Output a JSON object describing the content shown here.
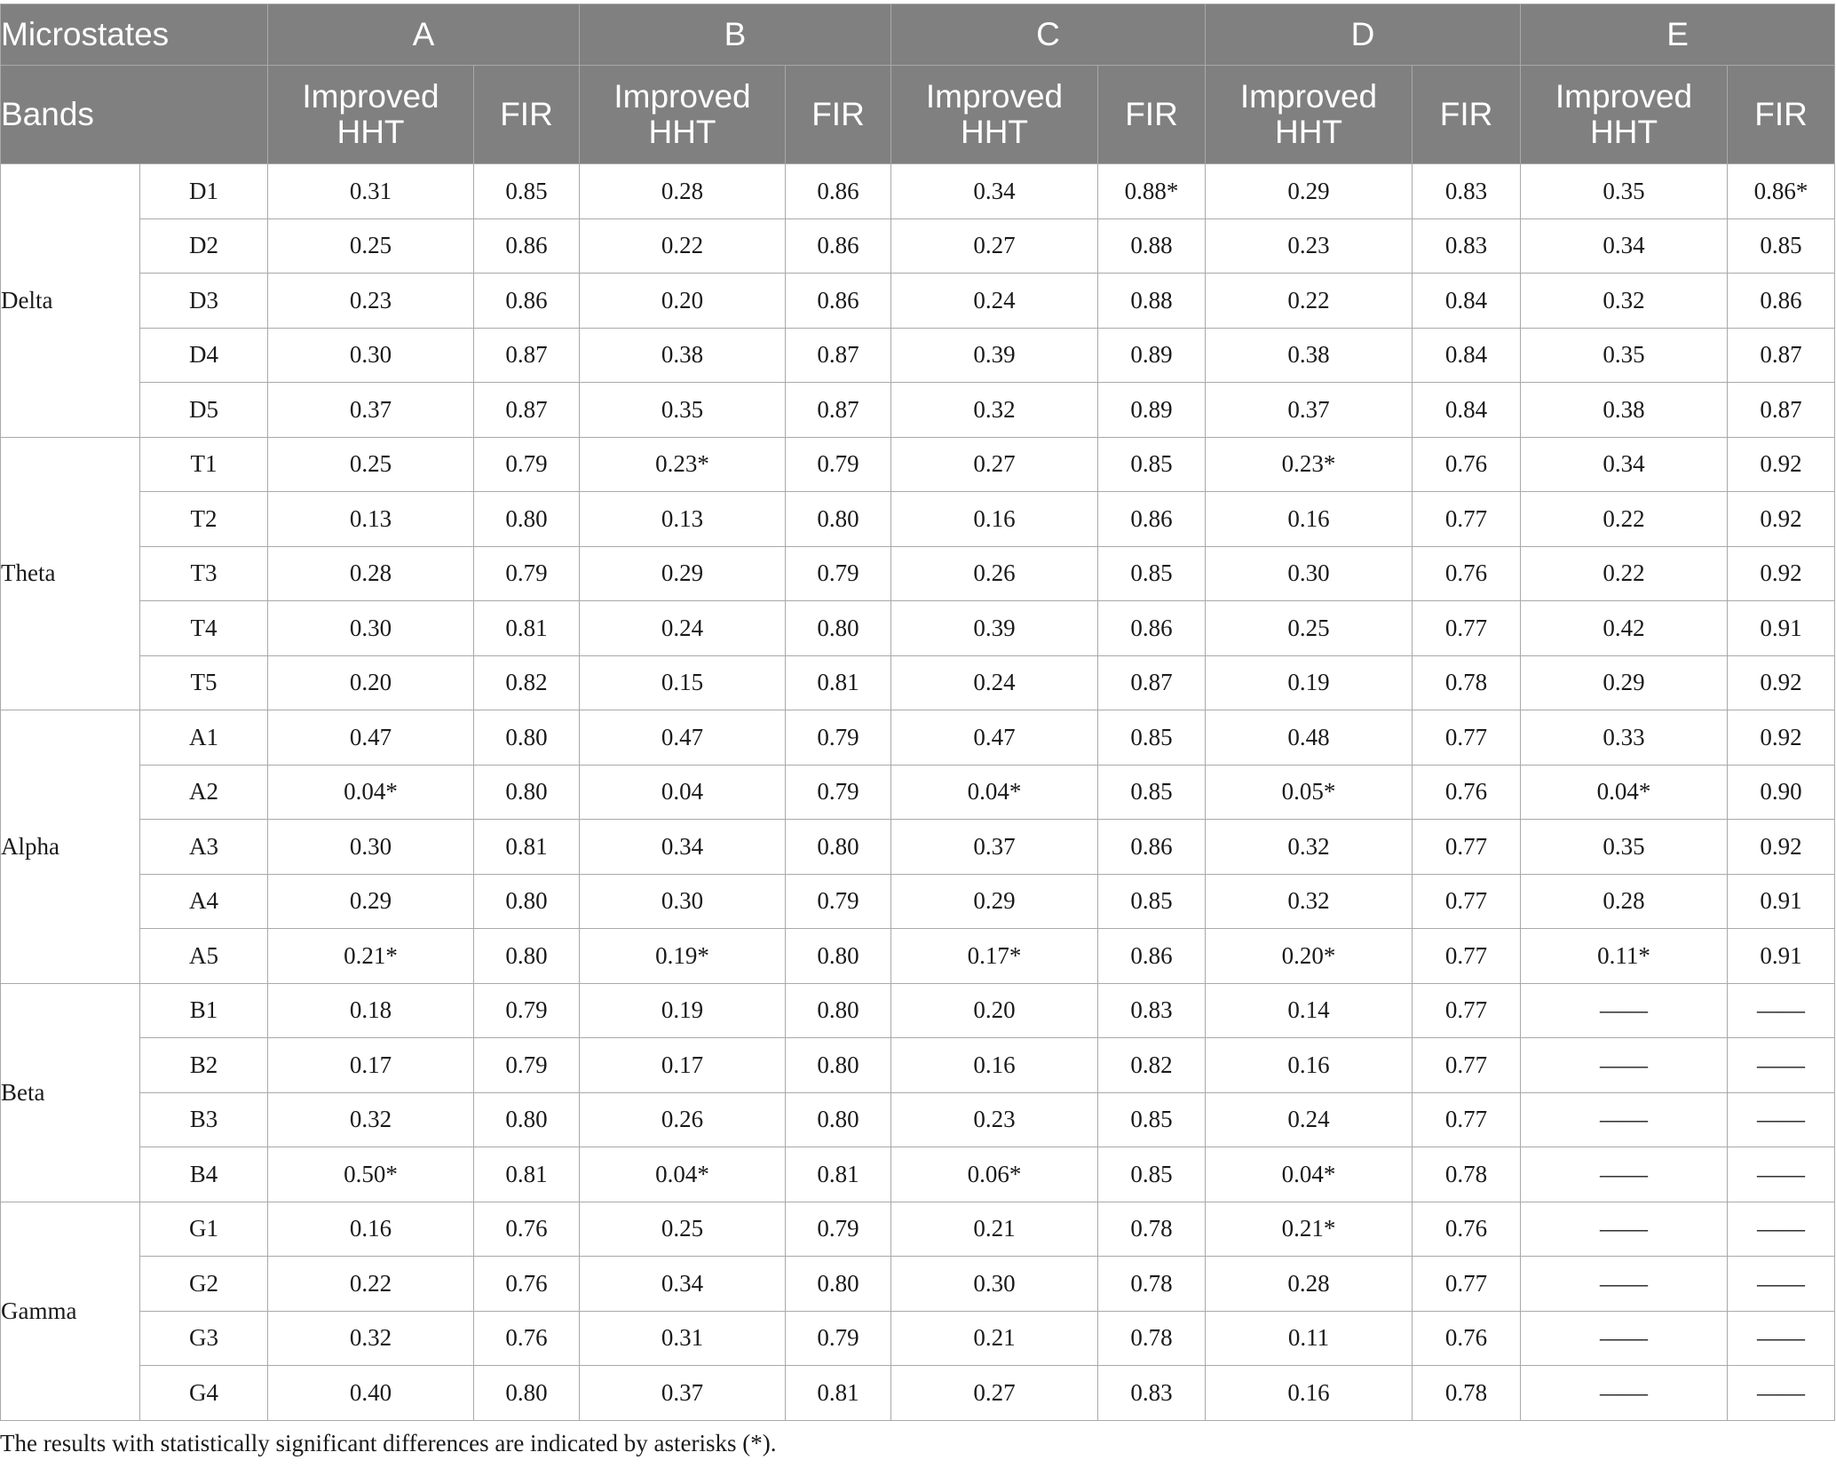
{
  "table": {
    "header_microstates": "Microstates",
    "header_bands": "Bands",
    "microstates": [
      "A",
      "B",
      "C",
      "D",
      "E"
    ],
    "method_hht": "Improved HHT",
    "method_fir": "FIR",
    "groups": [
      {
        "band": "Delta",
        "rows": [
          {
            "sub": "D1",
            "values": [
              "0.31",
              "0.85",
              "0.28",
              "0.86",
              "0.34",
              "0.88*",
              "0.29",
              "0.83",
              "0.35",
              "0.86*"
            ]
          },
          {
            "sub": "D2",
            "values": [
              "0.25",
              "0.86",
              "0.22",
              "0.86",
              "0.27",
              "0.88",
              "0.23",
              "0.83",
              "0.34",
              "0.85"
            ]
          },
          {
            "sub": "D3",
            "values": [
              "0.23",
              "0.86",
              "0.20",
              "0.86",
              "0.24",
              "0.88",
              "0.22",
              "0.84",
              "0.32",
              "0.86"
            ]
          },
          {
            "sub": "D4",
            "values": [
              "0.30",
              "0.87",
              "0.38",
              "0.87",
              "0.39",
              "0.89",
              "0.38",
              "0.84",
              "0.35",
              "0.87"
            ]
          },
          {
            "sub": "D5",
            "values": [
              "0.37",
              "0.87",
              "0.35",
              "0.87",
              "0.32",
              "0.89",
              "0.37",
              "0.84",
              "0.38",
              "0.87"
            ]
          }
        ]
      },
      {
        "band": "Theta",
        "rows": [
          {
            "sub": "T1",
            "values": [
              "0.25",
              "0.79",
              "0.23*",
              "0.79",
              "0.27",
              "0.85",
              "0.23*",
              "0.76",
              "0.34",
              "0.92"
            ]
          },
          {
            "sub": "T2",
            "values": [
              "0.13",
              "0.80",
              "0.13",
              "0.80",
              "0.16",
              "0.86",
              "0.16",
              "0.77",
              "0.22",
              "0.92"
            ]
          },
          {
            "sub": "T3",
            "values": [
              "0.28",
              "0.79",
              "0.29",
              "0.79",
              "0.26",
              "0.85",
              "0.30",
              "0.76",
              "0.22",
              "0.92"
            ]
          },
          {
            "sub": "T4",
            "values": [
              "0.30",
              "0.81",
              "0.24",
              "0.80",
              "0.39",
              "0.86",
              "0.25",
              "0.77",
              "0.42",
              "0.91"
            ]
          },
          {
            "sub": "T5",
            "values": [
              "0.20",
              "0.82",
              "0.15",
              "0.81",
              "0.24",
              "0.87",
              "0.19",
              "0.78",
              "0.29",
              "0.92"
            ]
          }
        ]
      },
      {
        "band": "Alpha",
        "rows": [
          {
            "sub": "A1",
            "values": [
              "0.47",
              "0.80",
              "0.47",
              "0.79",
              "0.47",
              "0.85",
              "0.48",
              "0.77",
              "0.33",
              "0.92"
            ]
          },
          {
            "sub": "A2",
            "values": [
              "0.04*",
              "0.80",
              "0.04",
              "0.79",
              "0.04*",
              "0.85",
              "0.05*",
              "0.76",
              "0.04*",
              "0.90"
            ]
          },
          {
            "sub": "A3",
            "values": [
              "0.30",
              "0.81",
              "0.34",
              "0.80",
              "0.37",
              "0.86",
              "0.32",
              "0.77",
              "0.35",
              "0.92"
            ]
          },
          {
            "sub": "A4",
            "values": [
              "0.29",
              "0.80",
              "0.30",
              "0.79",
              "0.29",
              "0.85",
              "0.32",
              "0.77",
              "0.28",
              "0.91"
            ]
          },
          {
            "sub": "A5",
            "values": [
              "0.21*",
              "0.80",
              "0.19*",
              "0.80",
              "0.17*",
              "0.86",
              "0.20*",
              "0.77",
              "0.11*",
              "0.91"
            ]
          }
        ]
      },
      {
        "band": "Beta",
        "rows": [
          {
            "sub": "B1",
            "values": [
              "0.18",
              "0.79",
              "0.19",
              "0.80",
              "0.20",
              "0.83",
              "0.14",
              "0.77",
              "——",
              "——"
            ]
          },
          {
            "sub": "B2",
            "values": [
              "0.17",
              "0.79",
              "0.17",
              "0.80",
              "0.16",
              "0.82",
              "0.16",
              "0.77",
              "——",
              "——"
            ]
          },
          {
            "sub": "B3",
            "values": [
              "0.32",
              "0.80",
              "0.26",
              "0.80",
              "0.23",
              "0.85",
              "0.24",
              "0.77",
              "——",
              "——"
            ]
          },
          {
            "sub": "B4",
            "values": [
              "0.50*",
              "0.81",
              "0.04*",
              "0.81",
              "0.06*",
              "0.85",
              "0.04*",
              "0.78",
              "——",
              "——"
            ]
          }
        ]
      },
      {
        "band": "Gamma",
        "rows": [
          {
            "sub": "G1",
            "values": [
              "0.16",
              "0.76",
              "0.25",
              "0.79",
              "0.21",
              "0.78",
              "0.21*",
              "0.76",
              "——",
              "——"
            ]
          },
          {
            "sub": "G2",
            "values": [
              "0.22",
              "0.76",
              "0.34",
              "0.80",
              "0.30",
              "0.78",
              "0.28",
              "0.77",
              "——",
              "——"
            ]
          },
          {
            "sub": "G3",
            "values": [
              "0.32",
              "0.76",
              "0.31",
              "0.79",
              "0.21",
              "0.78",
              "0.11",
              "0.76",
              "——",
              "——"
            ]
          },
          {
            "sub": "G4",
            "values": [
              "0.40",
              "0.80",
              "0.37",
              "0.81",
              "0.27",
              "0.83",
              "0.16",
              "0.78",
              "——",
              "——"
            ]
          }
        ]
      }
    ]
  },
  "footnote": "The results with statistically significant differences are indicated by asterisks (*)."
}
